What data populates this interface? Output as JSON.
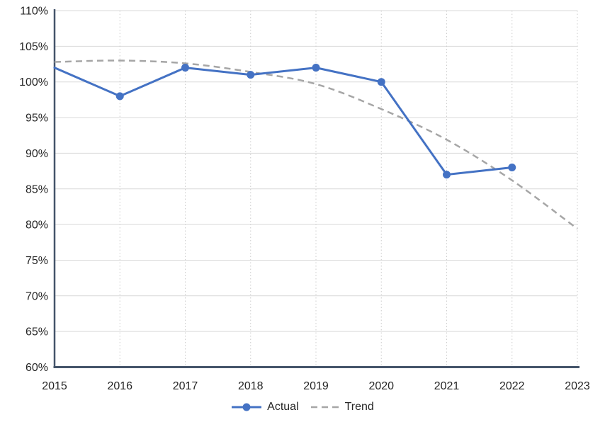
{
  "chart_data": {
    "type": "line",
    "title": "",
    "xlabel": "",
    "ylabel": "",
    "x": [
      2015,
      2016,
      2017,
      2018,
      2019,
      2020,
      2021,
      2022,
      2023
    ],
    "x_tick_labels": [
      "2015",
      "2016",
      "2017",
      "2018",
      "2019",
      "2020",
      "2021",
      "2022",
      "2023"
    ],
    "y_tick_values": [
      110,
      105,
      100,
      95,
      90,
      85,
      80,
      75,
      70,
      65,
      60
    ],
    "y_tick_labels": [
      "110%",
      "105%",
      "100%",
      "95%",
      "90%",
      "85%",
      "80%",
      "75%",
      "70%",
      "65%",
      "60%"
    ],
    "ylim": [
      60,
      110
    ],
    "xlim": [
      2015,
      2023
    ],
    "grid": {
      "horizontal": "solid",
      "vertical": "dotted",
      "horizontal_color": "#D9D9D9",
      "vertical_color": "#CCCCCC"
    },
    "axis_color": "#44546A",
    "text_color": "#262626",
    "legend_position": "bottom",
    "series": [
      {
        "name": "Actual",
        "values": [
          102,
          98,
          102,
          101,
          102,
          100,
          87,
          88,
          null
        ],
        "unit": "%",
        "color": "#4472C4",
        "line_style": "solid",
        "marker": "circle",
        "skip_first_marker": true
      },
      {
        "name": "Trend",
        "values": [
          102.8,
          103.0,
          102.6,
          101.4,
          99.7,
          96.2,
          91.9,
          86.2,
          79.4
        ],
        "unit": "%",
        "color": "#A6A6A6",
        "line_style": "dashed",
        "marker": "none"
      }
    ]
  },
  "legend": {
    "actual_label": "Actual",
    "trend_label": "Trend"
  }
}
